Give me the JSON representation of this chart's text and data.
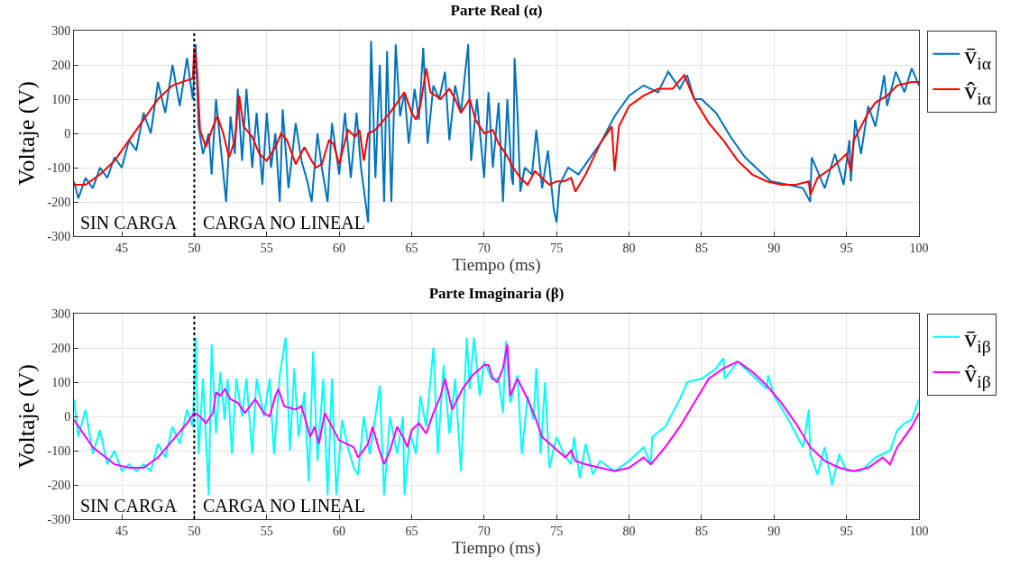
{
  "chart_data": [
    {
      "type": "line",
      "title": "Parte Real (α)",
      "xlabel": "Tiempo (ms)",
      "ylabel": "Voltaje (V)",
      "xlim": [
        41.7,
        100
      ],
      "xticks": [
        45,
        50,
        55,
        60,
        65,
        70,
        75,
        80,
        85,
        90,
        95,
        100
      ],
      "ylim": [
        -300,
        300
      ],
      "yticks": [
        -300,
        -200,
        -100,
        0,
        100,
        200,
        300
      ],
      "grid": true,
      "legend": "top right",
      "line_style": "solid",
      "ref_lines": [
        {
          "axis": "x",
          "value": 50,
          "color": "#000000",
          "line_style": "dotted"
        }
      ],
      "annotations": [
        "SIN CARGA",
        "CARGA NO LINEAL"
      ],
      "series": [
        {
          "name": "v̄$_{iα}$",
          "color": "#0072bd",
          "x": [
            41.7,
            42,
            42.5,
            43,
            43.5,
            44,
            44.5,
            45,
            45.5,
            46,
            46.5,
            47,
            47.5,
            48,
            48.5,
            49,
            49.5,
            49.9,
            50.1,
            50.3,
            50.6,
            51,
            51.2,
            51.5,
            51.8,
            52.2,
            52.5,
            52.8,
            53,
            53.3,
            53.6,
            54,
            54.3,
            54.7,
            55,
            55.3,
            55.6,
            55.9,
            56.1,
            56.5,
            57,
            57.4,
            57.8,
            58.1,
            58.5,
            58.8,
            59.2,
            59.5,
            60,
            60.4,
            60.8,
            61.2,
            61.5,
            62,
            62.2,
            62.5,
            62.8,
            63.1,
            63.3,
            63.6,
            63.9,
            64.2,
            64.5,
            64.8,
            65.2,
            65.5,
            65.8,
            66.1,
            66.5,
            66.9,
            67.3,
            67.6,
            68,
            68.4,
            68.9,
            69.1,
            69.5,
            70,
            70.3,
            70.6,
            71,
            71.3,
            71.6,
            71.9,
            72,
            72.1,
            72.3,
            72.5,
            72.8,
            73.3,
            73.6,
            74,
            74.4,
            74.8,
            75,
            75.2,
            75.8,
            76.5,
            77,
            78,
            79,
            80,
            81,
            82,
            82.7,
            83.5,
            84,
            84.5,
            85,
            86,
            87,
            88,
            89,
            89.8,
            91,
            92,
            92.5,
            92.6,
            93.5,
            94.2,
            94.8,
            95.2,
            95.3,
            95.6,
            96,
            96.5,
            97,
            97.6,
            97.8,
            98.4,
            99,
            99.5,
            100
          ],
          "values": [
            -140,
            -190,
            -130,
            -160,
            -100,
            -130,
            -70,
            -100,
            -20,
            -50,
            60,
            0,
            150,
            60,
            200,
            80,
            220,
            100,
            260,
            20,
            -60,
            0,
            -120,
            100,
            -30,
            -200,
            50,
            -60,
            130,
            -80,
            130,
            -100,
            60,
            -150,
            60,
            -100,
            0,
            -200,
            70,
            -160,
            30,
            -80,
            -140,
            -200,
            0,
            -100,
            -200,
            30,
            -120,
            60,
            -130,
            60,
            -100,
            -260,
            270,
            -130,
            200,
            -200,
            240,
            -200,
            260,
            50,
            120,
            -30,
            130,
            40,
            250,
            -30,
            140,
            100,
            180,
            -20,
            140,
            60,
            260,
            -80,
            100,
            -130,
            120,
            -100,
            90,
            -200,
            100,
            -130,
            -150,
            220,
            60,
            -170,
            -100,
            -120,
            10,
            -160,
            -50,
            -220,
            -260,
            -150,
            -100,
            -120,
            -90,
            -30,
            50,
            110,
            140,
            120,
            180,
            130,
            170,
            100,
            100,
            60,
            -10,
            -70,
            -110,
            -140,
            -150,
            -160,
            -200,
            -70,
            -160,
            -60,
            -150,
            -20,
            -140,
            40,
            -60,
            80,
            20,
            170,
            80,
            180,
            120,
            190,
            140
          ]
        },
        {
          "name": "v̂$_{iα}$",
          "color": "#ff0000",
          "x": [
            41.7,
            42.5,
            43.5,
            44.5,
            45.5,
            46.5,
            47.5,
            48.5,
            49.5,
            49.9,
            50,
            50.2,
            50.4,
            50.8,
            51.3,
            51.6,
            52,
            52.4,
            52.8,
            53.1,
            53.4,
            54,
            54.5,
            55,
            55.6,
            56,
            56.4,
            57,
            57.6,
            58.1,
            58.4,
            58.8,
            59.3,
            59.6,
            60,
            60.6,
            61.1,
            61.4,
            61.7,
            62,
            62.5,
            63.5,
            64,
            64.5,
            65,
            65.3,
            65.6,
            66,
            66.3,
            67,
            67.6,
            68,
            68.4,
            69,
            69.4,
            70,
            70.6,
            71,
            71.5,
            72,
            72.5,
            73,
            73.5,
            74,
            74.5,
            75,
            75.5,
            76,
            76.3,
            77,
            78,
            78.8,
            79,
            79.3,
            80,
            81,
            82,
            83,
            83.8,
            84.5,
            85.5,
            86.5,
            87.5,
            88.5,
            89.5,
            90.5,
            91.5,
            92.4,
            92.5,
            93,
            94,
            95,
            95.3,
            95.5,
            96.5,
            97,
            97.8,
            98.5,
            99.5,
            100
          ],
          "values": [
            -150,
            -150,
            -120,
            -80,
            -20,
            40,
            100,
            140,
            155,
            160,
            250,
            180,
            10,
            -40,
            20,
            50,
            0,
            -70,
            -20,
            110,
            20,
            -10,
            -60,
            -80,
            -40,
            0,
            -20,
            -90,
            -40,
            -80,
            -100,
            -90,
            -20,
            -30,
            -90,
            10,
            -10,
            10,
            -80,
            0,
            10,
            60,
            90,
            120,
            60,
            40,
            80,
            190,
            120,
            100,
            130,
            100,
            60,
            100,
            40,
            0,
            10,
            -30,
            -60,
            -100,
            -130,
            -150,
            -110,
            -130,
            -150,
            -140,
            -140,
            -130,
            -170,
            -120,
            -30,
            20,
            -110,
            20,
            80,
            110,
            130,
            130,
            170,
            100,
            30,
            -20,
            -80,
            -120,
            -140,
            -150,
            -150,
            -140,
            -180,
            -130,
            -100,
            -60,
            -110,
            -20,
            60,
            90,
            110,
            140,
            150,
            150
          ]
        }
      ]
    },
    {
      "type": "line",
      "title": "Parte Imaginaria (β)",
      "xlabel": "Tiempo (ms)",
      "ylabel": "Voltaje (V)",
      "xlim": [
        41.7,
        100
      ],
      "xticks": [
        45,
        50,
        55,
        60,
        65,
        70,
        75,
        80,
        85,
        90,
        95,
        100
      ],
      "ylim": [
        -300,
        300
      ],
      "yticks": [
        -300,
        -200,
        -100,
        0,
        100,
        200,
        300
      ],
      "grid": true,
      "legend": "top right",
      "line_style": "solid",
      "ref_lines": [
        {
          "axis": "x",
          "value": 50,
          "color": "#000000",
          "line_style": "dotted"
        }
      ],
      "annotations": [
        "SIN CARGA",
        "CARGA NO LINEAL"
      ],
      "series": [
        {
          "name": "v̄$_{iβ}$",
          "color": "#00ffff",
          "x": [
            41.7,
            42,
            42.5,
            43,
            43.5,
            44,
            44.5,
            45,
            45.5,
            46,
            46.5,
            47,
            47.5,
            48,
            48.5,
            49,
            49.5,
            49.9,
            50.1,
            50.3,
            50.6,
            51,
            51.2,
            51.5,
            51.8,
            52.1,
            52.3,
            52.6,
            52.9,
            53.3,
            53.6,
            54,
            54.3,
            54.8,
            55.2,
            55.5,
            55.9,
            56.3,
            56.6,
            56.9,
            57.2,
            57.6,
            57.9,
            58.2,
            58.5,
            58.9,
            59.2,
            59.5,
            59.8,
            60.2,
            60.6,
            61,
            61.3,
            61.7,
            62.1,
            62.5,
            62.8,
            63.1,
            63.5,
            64,
            64.4,
            64.5,
            64.9,
            65.3,
            65.6,
            66,
            66.5,
            66.8,
            67.2,
            67.6,
            68,
            68.4,
            68.8,
            69,
            69.3,
            69.7,
            70,
            70.5,
            71,
            71.3,
            71.5,
            71.8,
            72.3,
            72.6,
            73,
            73.4,
            73.6,
            73.9,
            74.2,
            74.5,
            75,
            75.5,
            76,
            76.2,
            76.6,
            77,
            77.5,
            78,
            79,
            80,
            81,
            81.5,
            81.6,
            82.5,
            83.5,
            84,
            85,
            86,
            86.5,
            86.6,
            87.5,
            88.5,
            89.5,
            89.6,
            90,
            91,
            92,
            92.4,
            92.5,
            93,
            93.5,
            94,
            94.5,
            95,
            96,
            97,
            98,
            98.5,
            99,
            99.5,
            100
          ],
          "values": [
            50,
            -60,
            20,
            -110,
            -40,
            -140,
            -100,
            -160,
            -140,
            -160,
            -140,
            -160,
            -80,
            -120,
            -30,
            -80,
            20,
            -30,
            230,
            -110,
            110,
            -230,
            210,
            -50,
            130,
            -10,
            110,
            -110,
            110,
            0,
            110,
            -110,
            110,
            0,
            110,
            -110,
            120,
            230,
            -100,
            140,
            -60,
            70,
            -190,
            190,
            -130,
            110,
            -230,
            110,
            -230,
            -10,
            -90,
            -150,
            -170,
            0,
            -110,
            0,
            90,
            -230,
            0,
            -110,
            0,
            -230,
            -50,
            -110,
            60,
            -30,
            200,
            -110,
            150,
            -50,
            110,
            -160,
            230,
            80,
            230,
            60,
            160,
            110,
            110,
            10,
            220,
            40,
            120,
            -110,
            60,
            -10,
            140,
            -110,
            100,
            -150,
            -60,
            -110,
            -140,
            -60,
            -180,
            -80,
            -170,
            -130,
            -160,
            -130,
            -90,
            -140,
            -60,
            -30,
            50,
            100,
            110,
            140,
            170,
            110,
            160,
            120,
            80,
            120,
            60,
            -10,
            -90,
            20,
            -110,
            -170,
            -90,
            -200,
            -110,
            -160,
            -160,
            -120,
            -100,
            -40,
            -20,
            -10,
            50
          ]
        },
        {
          "name": "v̂$_{iβ}$",
          "color": "#ff00ff",
          "x": [
            41.7,
            43,
            44.5,
            45.5,
            46.5,
            47.5,
            48.5,
            49.5,
            50,
            50.4,
            50.8,
            51.3,
            51.5,
            51.8,
            52.1,
            52.5,
            53,
            53.5,
            54.2,
            54.8,
            55.2,
            55.6,
            55.8,
            56.2,
            57,
            57.4,
            58,
            58.3,
            58.6,
            59,
            59.5,
            60,
            60.5,
            61,
            61.3,
            62,
            62.3,
            62.7,
            63.1,
            63.5,
            64,
            64.4,
            64.7,
            65,
            65.5,
            66,
            66.5,
            67,
            67.3,
            67.8,
            68.5,
            69.2,
            70,
            70.3,
            70.6,
            70.9,
            71.3,
            71.6,
            71.8,
            72.3,
            73,
            73.5,
            74,
            74.8,
            75.6,
            76,
            76.3,
            77,
            78,
            79,
            80,
            81,
            81.5,
            82.5,
            83.5,
            84.5,
            85.5,
            86.5,
            87.5,
            88.5,
            89.5,
            90.5,
            91.5,
            92.5,
            93.5,
            94.5,
            95.5,
            96.5,
            97.5,
            98,
            98.5,
            99.5,
            100
          ],
          "values": [
            -10,
            -90,
            -140,
            -150,
            -150,
            -120,
            -70,
            -20,
            10,
            0,
            -20,
            10,
            70,
            60,
            80,
            50,
            40,
            10,
            50,
            10,
            0,
            60,
            80,
            30,
            20,
            30,
            -60,
            -30,
            -80,
            10,
            -30,
            -70,
            -80,
            -90,
            -120,
            -80,
            -30,
            -90,
            -140,
            -100,
            -30,
            -60,
            -90,
            -40,
            -20,
            -50,
            10,
            60,
            110,
            20,
            80,
            120,
            150,
            150,
            110,
            100,
            140,
            210,
            60,
            110,
            50,
            0,
            -60,
            -90,
            -120,
            -100,
            -130,
            -140,
            -150,
            -160,
            -150,
            -120,
            -140,
            -90,
            -30,
            40,
            110,
            140,
            160,
            130,
            90,
            40,
            -20,
            -90,
            -130,
            -150,
            -160,
            -150,
            -120,
            -140,
            -90,
            -30,
            10
          ]
        }
      ]
    }
  ]
}
